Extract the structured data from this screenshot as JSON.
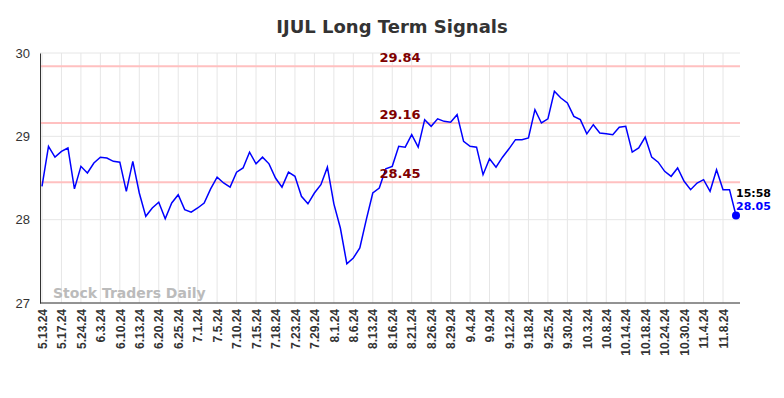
{
  "chart_data": {
    "type": "line",
    "title": "IJUL Long Term Signals",
    "watermark": "Stock Traders Daily",
    "color": "#0000ff",
    "grid": true,
    "ylim": [
      27,
      30
    ],
    "yticks": [
      27,
      28,
      29,
      30
    ],
    "categories": [
      "5.13.24",
      null,
      null,
      "5.17.24",
      null,
      null,
      "5.24.24",
      null,
      null,
      "6.3.24",
      null,
      null,
      "6.10.24",
      null,
      null,
      "6.13.24",
      null,
      null,
      "6.20.24",
      null,
      null,
      "6.25.24",
      null,
      null,
      "7.1.24",
      null,
      null,
      "7.5.24",
      null,
      null,
      "7.10.24",
      null,
      null,
      "7.15.24",
      null,
      null,
      "7.18.24",
      null,
      null,
      "7.23.24",
      null,
      null,
      "7.29.24",
      null,
      null,
      "8.1.24",
      null,
      null,
      "8.6.24",
      null,
      null,
      "8.13.24",
      null,
      null,
      "8.16.24",
      null,
      null,
      "8.21.24",
      null,
      null,
      "8.26.24",
      null,
      null,
      "8.29.24",
      null,
      null,
      "9.4.24",
      null,
      null,
      "9.9.24",
      null,
      null,
      "9.12.24",
      null,
      null,
      "9.18.24",
      null,
      null,
      "9.25.24",
      null,
      null,
      "9.30.24",
      null,
      null,
      "10.3.24",
      null,
      null,
      "10.8.24",
      null,
      null,
      "10.14.24",
      null,
      null,
      "10.18.24",
      null,
      null,
      "10.24.24",
      null,
      null,
      "10.30.24",
      null,
      null,
      "11.4.24",
      null,
      null,
      "11.8.24",
      null,
      null
    ],
    "values": [
      28.4,
      28.88,
      28.75,
      28.82,
      28.86,
      28.37,
      28.64,
      28.56,
      28.68,
      28.75,
      28.74,
      28.7,
      28.69,
      28.34,
      28.7,
      28.32,
      28.04,
      28.14,
      28.21,
      28.01,
      28.2,
      28.3,
      28.12,
      28.09,
      28.14,
      28.2,
      28.37,
      28.51,
      28.44,
      28.39,
      28.57,
      28.62,
      28.81,
      28.67,
      28.75,
      28.67,
      28.5,
      28.39,
      28.57,
      28.52,
      28.28,
      28.19,
      28.32,
      28.42,
      28.63,
      28.19,
      27.9,
      27.47,
      27.54,
      27.66,
      28.0,
      28.32,
      28.38,
      28.61,
      28.64,
      28.88,
      28.87,
      29.02,
      28.87,
      29.2,
      29.12,
      29.21,
      29.18,
      29.17,
      29.26,
      28.94,
      28.88,
      28.87,
      28.54,
      28.73,
      28.63,
      28.75,
      28.85,
      28.96,
      28.96,
      28.98,
      29.32,
      29.16,
      29.21,
      29.54,
      29.46,
      29.4,
      29.24,
      29.2,
      29.03,
      29.14,
      29.04,
      29.03,
      29.02,
      29.11,
      29.12,
      28.81,
      28.86,
      28.99,
      28.75,
      28.69,
      28.58,
      28.52,
      28.62,
      28.46,
      28.36,
      28.44,
      28.48,
      28.34,
      28.6,
      28.36,
      28.36,
      28.05
    ],
    "annotations": [
      {
        "y": 29.84,
        "text": "29.84"
      },
      {
        "y": 29.16,
        "text": "29.16"
      },
      {
        "y": 28.45,
        "text": "28.45"
      }
    ],
    "last_point": {
      "time_label": "15:58",
      "value_label": "28.05"
    }
  }
}
